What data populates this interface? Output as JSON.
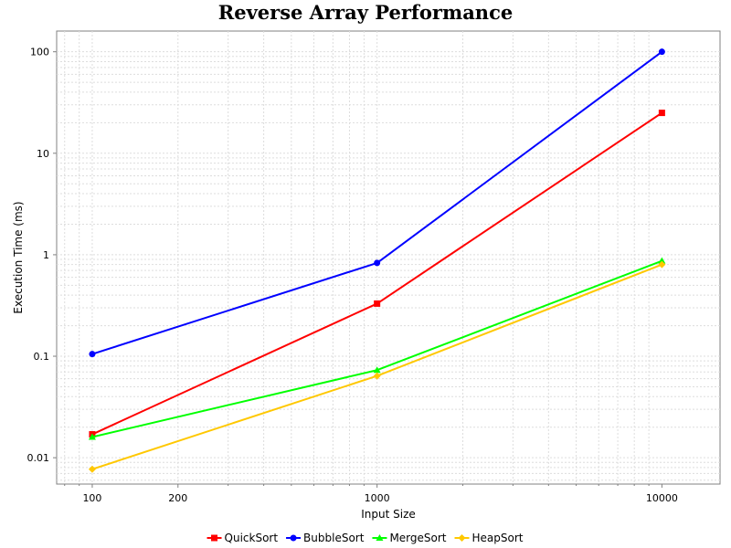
{
  "chart_data": {
    "type": "line",
    "title": "Reverse Array Performance",
    "xlabel": "Input Size",
    "ylabel": "Execution Time (ms)",
    "x_scale": "log",
    "y_scale": "log",
    "xlim": [
      75,
      16000
    ],
    "ylim": [
      0.0055,
      160
    ],
    "grid": true,
    "legend_position": "bottom",
    "x_ticks": [
      100,
      200,
      1000,
      10000
    ],
    "x_tick_labels": [
      "100",
      "200",
      "1000",
      "10000"
    ],
    "y_ticks": [
      0.01,
      0.1,
      1,
      10,
      100
    ],
    "y_tick_labels": [
      "0.01",
      "0.1",
      "1",
      "10",
      "100"
    ],
    "x": [
      100,
      1000,
      10000
    ],
    "series": [
      {
        "name": "QuickSort",
        "color": "#ff0000",
        "marker": "square",
        "values": [
          0.017,
          0.33,
          25
        ]
      },
      {
        "name": "BubbleSort",
        "color": "#0000ff",
        "marker": "circle",
        "values": [
          0.105,
          0.83,
          100
        ]
      },
      {
        "name": "MergeSort",
        "color": "#00ff00",
        "marker": "triangle",
        "values": [
          0.016,
          0.073,
          0.87
        ]
      },
      {
        "name": "HeapSort",
        "color": "#ffc800",
        "marker": "diamond",
        "values": [
          0.0077,
          0.064,
          0.8
        ]
      }
    ]
  }
}
